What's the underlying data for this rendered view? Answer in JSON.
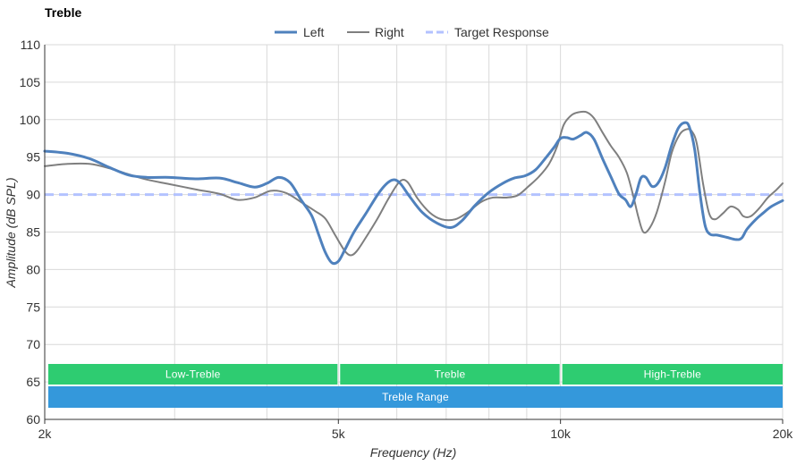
{
  "chart_data": {
    "type": "line",
    "title": "Treble",
    "xlabel": "Frequency (Hz)",
    "ylabel": "Amplitude (dB SPL)",
    "x_scale": "log",
    "xlim": [
      2000,
      20000
    ],
    "ylim": [
      60,
      110
    ],
    "x_ticks": [
      {
        "value": 2000,
        "label": "2k"
      },
      {
        "value": 5000,
        "label": "5k"
      },
      {
        "value": 10000,
        "label": "10k"
      },
      {
        "value": 20000,
        "label": "20k"
      }
    ],
    "x_gridlines": [
      2000,
      3000,
      4000,
      5000,
      6000,
      7000,
      8000,
      9000,
      10000,
      20000
    ],
    "y_ticks": [
      60,
      65,
      70,
      75,
      80,
      85,
      90,
      95,
      100,
      105,
      110
    ],
    "grid": true,
    "legend": "top-center",
    "series": [
      {
        "name": "Left",
        "color": "#4f81bd",
        "style": "solid",
        "points": [
          [
            2000,
            95.8
          ],
          [
            2150,
            95.5
          ],
          [
            2300,
            94.8
          ],
          [
            2450,
            93.6
          ],
          [
            2600,
            92.6
          ],
          [
            2750,
            92.3
          ],
          [
            2950,
            92.3
          ],
          [
            3200,
            92.1
          ],
          [
            3450,
            92.2
          ],
          [
            3650,
            91.6
          ],
          [
            3850,
            91.0
          ],
          [
            4000,
            91.5
          ],
          [
            4150,
            92.3
          ],
          [
            4300,
            91.6
          ],
          [
            4450,
            89.3
          ],
          [
            4600,
            87.2
          ],
          [
            4700,
            84.7
          ],
          [
            4800,
            82.3
          ],
          [
            4900,
            80.9
          ],
          [
            5000,
            81.1
          ],
          [
            5100,
            82.6
          ],
          [
            5250,
            85.0
          ],
          [
            5450,
            87.5
          ],
          [
            5700,
            90.5
          ],
          [
            5900,
            91.9
          ],
          [
            6050,
            91.6
          ],
          [
            6250,
            89.7
          ],
          [
            6500,
            87.6
          ],
          [
            6800,
            86.2
          ],
          [
            7100,
            85.6
          ],
          [
            7350,
            86.5
          ],
          [
            7650,
            88.5
          ],
          [
            8000,
            90.3
          ],
          [
            8350,
            91.5
          ],
          [
            8650,
            92.2
          ],
          [
            8950,
            92.5
          ],
          [
            9250,
            93.3
          ],
          [
            9550,
            94.9
          ],
          [
            9800,
            96.3
          ],
          [
            10000,
            97.5
          ],
          [
            10200,
            97.6
          ],
          [
            10400,
            97.4
          ],
          [
            10650,
            97.9
          ],
          [
            10850,
            98.3
          ],
          [
            11100,
            97.4
          ],
          [
            11400,
            94.8
          ],
          [
            11700,
            92.4
          ],
          [
            12000,
            90.1
          ],
          [
            12250,
            89.3
          ],
          [
            12450,
            88.4
          ],
          [
            12650,
            90.0
          ],
          [
            12850,
            92.2
          ],
          [
            13050,
            92.3
          ],
          [
            13300,
            91.1
          ],
          [
            13550,
            91.5
          ],
          [
            13850,
            93.5
          ],
          [
            14150,
            96.6
          ],
          [
            14450,
            98.9
          ],
          [
            14750,
            99.6
          ],
          [
            14950,
            99.0
          ],
          [
            15200,
            96.0
          ],
          [
            15450,
            90.2
          ],
          [
            15700,
            85.9
          ],
          [
            15950,
            84.7
          ],
          [
            16300,
            84.6
          ],
          [
            16800,
            84.3
          ],
          [
            17300,
            84.0
          ],
          [
            17600,
            84.2
          ],
          [
            17900,
            85.4
          ],
          [
            18400,
            86.7
          ],
          [
            18800,
            87.5
          ],
          [
            19300,
            88.4
          ],
          [
            20000,
            89.2
          ]
        ]
      },
      {
        "name": "Right",
        "color": "#7f7f7f",
        "style": "solid",
        "points": [
          [
            2000,
            93.8
          ],
          [
            2150,
            94.1
          ],
          [
            2300,
            94.1
          ],
          [
            2450,
            93.5
          ],
          [
            2600,
            92.7
          ],
          [
            2750,
            92.0
          ],
          [
            2950,
            91.4
          ],
          [
            3200,
            90.7
          ],
          [
            3450,
            90.1
          ],
          [
            3650,
            89.3
          ],
          [
            3850,
            89.6
          ],
          [
            4050,
            90.5
          ],
          [
            4250,
            90.2
          ],
          [
            4450,
            89.0
          ],
          [
            4650,
            87.8
          ],
          [
            4800,
            86.8
          ],
          [
            4950,
            84.6
          ],
          [
            5100,
            82.5
          ],
          [
            5200,
            81.9
          ],
          [
            5300,
            82.5
          ],
          [
            5450,
            84.3
          ],
          [
            5650,
            86.8
          ],
          [
            5850,
            89.5
          ],
          [
            6050,
            91.7
          ],
          [
            6200,
            91.7
          ],
          [
            6400,
            89.5
          ],
          [
            6650,
            87.6
          ],
          [
            6900,
            86.7
          ],
          [
            7200,
            86.7
          ],
          [
            7500,
            87.7
          ],
          [
            7800,
            89.0
          ],
          [
            8100,
            89.6
          ],
          [
            8450,
            89.6
          ],
          [
            8750,
            89.9
          ],
          [
            9050,
            91.1
          ],
          [
            9350,
            92.4
          ],
          [
            9650,
            94.1
          ],
          [
            9900,
            96.5
          ],
          [
            10100,
            99.3
          ],
          [
            10350,
            100.6
          ],
          [
            10600,
            101.0
          ],
          [
            10850,
            101.0
          ],
          [
            11100,
            100.2
          ],
          [
            11400,
            98.3
          ],
          [
            11700,
            96.5
          ],
          [
            12000,
            95.0
          ],
          [
            12300,
            92.9
          ],
          [
            12550,
            89.8
          ],
          [
            12750,
            87.0
          ],
          [
            12950,
            85.0
          ],
          [
            13200,
            85.5
          ],
          [
            13500,
            87.6
          ],
          [
            13850,
            91.6
          ],
          [
            14150,
            95.6
          ],
          [
            14500,
            98.0
          ],
          [
            14800,
            98.7
          ],
          [
            15050,
            98.5
          ],
          [
            15300,
            96.8
          ],
          [
            15600,
            91.5
          ],
          [
            15900,
            87.5
          ],
          [
            16200,
            86.7
          ],
          [
            16600,
            87.5
          ],
          [
            17000,
            88.4
          ],
          [
            17400,
            88.0
          ],
          [
            17700,
            87.1
          ],
          [
            18100,
            87.1
          ],
          [
            18600,
            88.2
          ],
          [
            19100,
            89.6
          ],
          [
            19600,
            90.6
          ],
          [
            20000,
            91.5
          ]
        ]
      },
      {
        "name": "Target Response",
        "color": "#b3c2ff",
        "style": "dashed",
        "points": [
          [
            2000,
            90
          ],
          [
            20000,
            90
          ]
        ]
      }
    ],
    "bands": [
      {
        "label": "Low-Treble",
        "from": 2000,
        "to": 5000,
        "color": "#2ecc71",
        "row": 1
      },
      {
        "label": "Treble",
        "from": 5000,
        "to": 10000,
        "color": "#2ecc71",
        "row": 1
      },
      {
        "label": "High-Treble",
        "from": 10000,
        "to": 20000,
        "color": "#2ecc71",
        "row": 1
      },
      {
        "label": "Treble Range",
        "from": 2000,
        "to": 20000,
        "color": "#3498db",
        "row": 2
      }
    ]
  }
}
